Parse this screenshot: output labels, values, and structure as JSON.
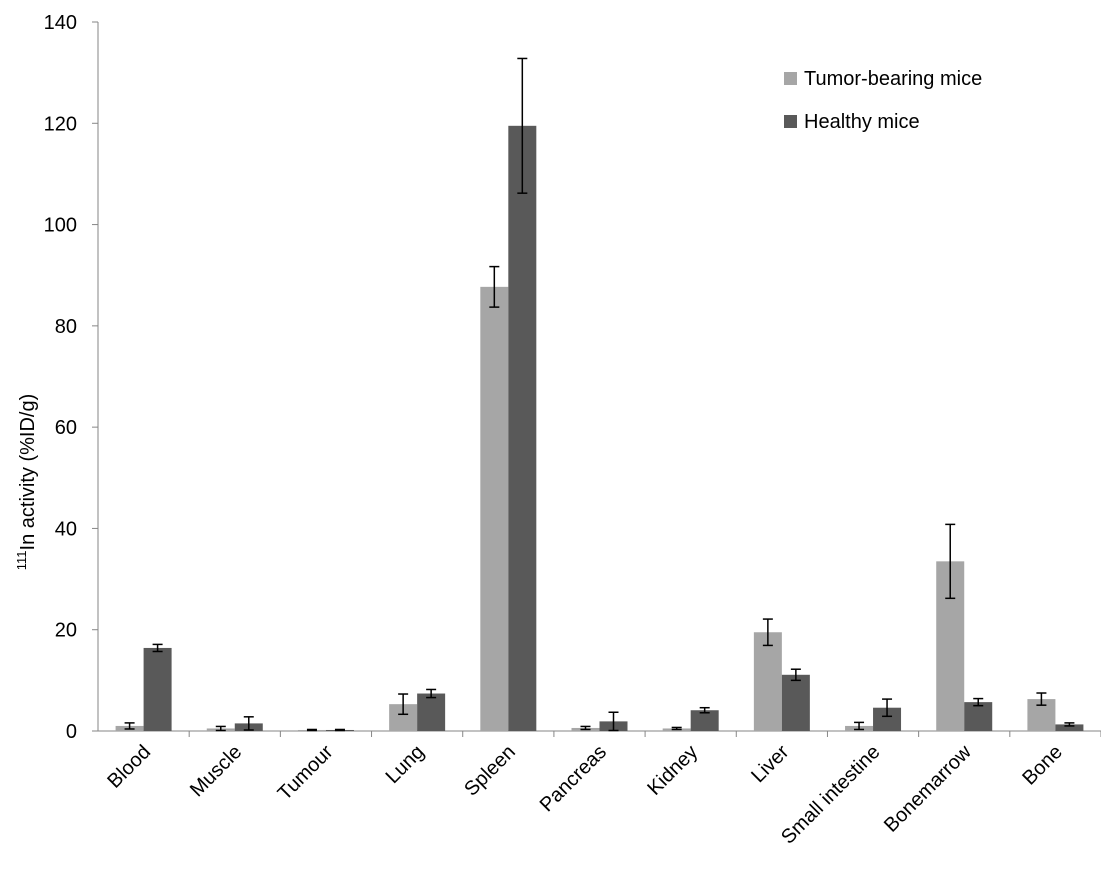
{
  "chart_data": {
    "type": "bar",
    "title": "",
    "xlabel": "",
    "ylabel_sup": "111",
    "ylabel_main": "In activity (%ID/g)",
    "ylim": [
      0,
      140
    ],
    "yticks": [
      0,
      20,
      40,
      60,
      80,
      100,
      120,
      140
    ],
    "grid": false,
    "legend_position": "top-right",
    "categories": [
      "Blood",
      "Muscle",
      "Tumour",
      "Lung",
      "Spleen",
      "Pancreas",
      "Kidney",
      "Liver",
      "Small intestine",
      "Bonemarrow",
      "Bone"
    ],
    "series": [
      {
        "name": "Tumor-bearing mice",
        "color": "#a6a6a6",
        "values": [
          1.0,
          0.5,
          0.2,
          5.3,
          87.7,
          0.6,
          0.5,
          19.5,
          1.0,
          33.5,
          6.3
        ],
        "errors": [
          0.6,
          0.4,
          0.1,
          2.0,
          4.0,
          0.3,
          0.2,
          2.6,
          0.7,
          7.3,
          1.2
        ]
      },
      {
        "name": "Healthy mice",
        "color": "#595959",
        "values": [
          16.4,
          1.5,
          0.2,
          7.4,
          119.5,
          1.9,
          4.1,
          11.1,
          4.6,
          5.7,
          1.3
        ],
        "errors": [
          0.7,
          1.3,
          0.1,
          0.8,
          13.3,
          1.8,
          0.5,
          1.1,
          1.7,
          0.7,
          0.3
        ]
      }
    ]
  }
}
